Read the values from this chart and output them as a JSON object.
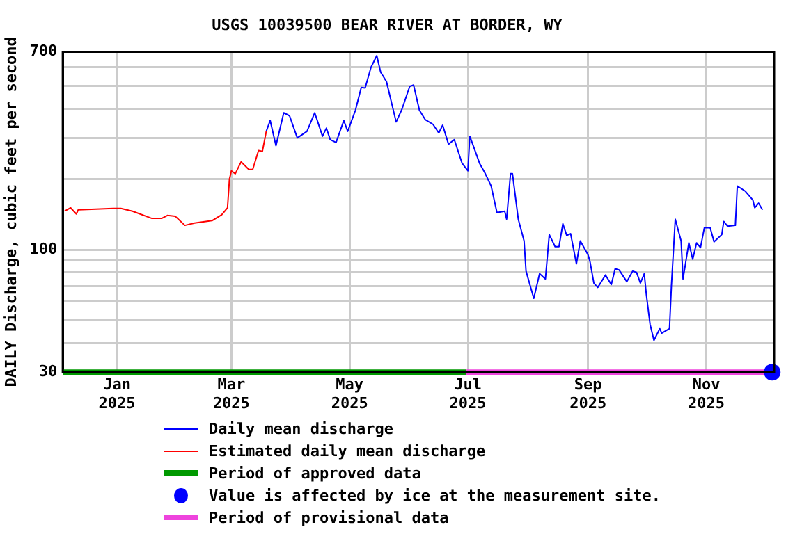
{
  "chart_data": {
    "type": "line",
    "title": "USGS 10039500 BEAR RIVER AT BORDER, WY",
    "ylabel": "DAILY Discharge, cubic feet per second",
    "log": "y",
    "grid": true,
    "legend": "bottom",
    "marker": "none",
    "xlim": [
      "2024-12-04",
      "2025-12-06"
    ],
    "xticks": [
      {
        "value": "2025-01-01",
        "label": "Jan 2025"
      },
      {
        "value": "2025-03-01",
        "label": "Mar 2025"
      },
      {
        "value": "2025-05-01",
        "label": "May 2025"
      },
      {
        "value": "2025-07-01",
        "label": "Jul 2025"
      },
      {
        "value": "2025-09-01",
        "label": "Sep 2025"
      },
      {
        "value": "2025-11-01",
        "label": "Nov 2025"
      }
    ],
    "ylim": [
      30,
      700
    ],
    "yticks": [
      30,
      {
        "value": 40,
        "label": null
      },
      {
        "value": 50,
        "label": null
      },
      {
        "value": 60,
        "label": null
      },
      {
        "value": 70,
        "label": null
      },
      {
        "value": 80,
        "label": null
      },
      {
        "value": 90,
        "label": null
      },
      100,
      {
        "value": 200,
        "label": null
      },
      {
        "value": 300,
        "label": null
      },
      {
        "value": 400,
        "label": null
      },
      {
        "value": 500,
        "label": null
      },
      {
        "value": 600,
        "label": null
      },
      700
    ],
    "series": [
      {
        "name": "Daily mean discharge",
        "color": "#0000ff",
        "x": [
          "2025-03-19",
          "2025-03-21",
          "2025-03-24",
          "2025-03-28",
          "2025-03-31",
          "2025-04-04",
          "2025-04-09",
          "2025-04-13",
          "2025-04-17",
          "2025-04-19",
          "2025-04-21",
          "2025-04-24",
          "2025-04-28",
          "2025-04-30",
          "2025-05-04",
          "2025-05-07",
          "2025-05-09",
          "2025-05-12",
          "2025-05-15",
          "2025-05-17",
          "2025-05-20",
          "2025-05-25",
          "2025-05-28",
          "2025-06-01",
          "2025-06-03",
          "2025-06-06",
          "2025-06-09",
          "2025-06-13",
          "2025-06-16",
          "2025-06-18",
          "2025-06-21",
          "2025-06-24",
          "2025-06-28",
          "2025-07-01",
          "2025-07-02",
          "2025-07-07",
          "2025-07-10",
          "2025-07-13",
          "2025-07-16",
          "2025-07-20",
          "2025-07-21",
          "2025-07-23",
          "2025-07-24",
          "2025-07-27",
          "2025-07-30",
          "2025-07-31",
          "2025-08-04",
          "2025-08-07",
          "2025-08-10",
          "2025-08-12",
          "2025-08-15",
          "2025-08-17",
          "2025-08-19",
          "2025-08-21",
          "2025-08-23",
          "2025-08-26",
          "2025-08-28",
          "2025-09-01",
          "2025-09-02",
          "2025-09-04",
          "2025-09-06",
          "2025-09-10",
          "2025-09-13",
          "2025-09-15",
          "2025-09-17",
          "2025-09-21",
          "2025-09-24",
          "2025-09-26",
          "2025-09-28",
          "2025-09-30",
          "2025-10-01",
          "2025-10-03",
          "2025-10-05",
          "2025-10-08",
          "2025-10-09",
          "2025-10-13",
          "2025-10-14",
          "2025-10-16",
          "2025-10-19",
          "2025-10-20",
          "2025-10-23",
          "2025-10-25",
          "2025-10-27",
          "2025-10-29",
          "2025-10-31",
          "2025-11-03",
          "2025-11-05",
          "2025-11-09",
          "2025-11-10",
          "2025-11-12",
          "2025-11-16",
          "2025-11-17",
          "2025-11-21",
          "2025-11-25",
          "2025-11-26",
          "2025-11-28",
          "2025-11-30"
        ],
        "values": [
          320,
          356,
          278,
          384,
          373,
          300,
          320,
          384,
          305,
          330,
          295,
          287,
          356,
          320,
          394,
          493,
          490,
          600,
          674,
          573,
          522,
          351,
          398,
          498,
          505,
          394,
          359,
          343,
          315,
          340,
          282,
          295,
          234,
          217,
          305,
          234,
          211,
          187,
          144,
          146,
          135,
          211,
          211,
          135,
          109,
          81,
          62,
          79,
          75,
          116,
          103,
          103,
          129,
          115,
          117,
          87,
          109,
          95,
          89,
          72,
          69,
          78,
          71,
          83,
          82,
          73,
          81,
          80,
          72,
          79,
          65,
          48,
          41,
          46,
          44,
          46,
          70,
          135,
          109,
          75,
          107,
          91,
          107,
          102,
          124,
          124,
          108,
          116,
          132,
          126,
          127,
          187,
          178,
          163,
          151,
          158,
          148
        ]
      },
      {
        "name": "Estimated daily mean discharge",
        "color": "#ff0000",
        "x": [
          "2024-12-05",
          "2024-12-08",
          "2024-12-11",
          "2024-12-12",
          "2024-12-30",
          "2025-01-03",
          "2025-01-09",
          "2025-01-19",
          "2025-01-24",
          "2025-01-27",
          "2025-01-31",
          "2025-02-05",
          "2025-02-10",
          "2025-02-19",
          "2025-02-24",
          "2025-02-27",
          "2025-02-28",
          "2025-03-01",
          "2025-03-03",
          "2025-03-06",
          "2025-03-10",
          "2025-03-12",
          "2025-03-15",
          "2025-03-17",
          "2025-03-19"
        ],
        "values": [
          146,
          151,
          142,
          148,
          150,
          150,
          146,
          136,
          136,
          140,
          139,
          127,
          130,
          133,
          141,
          151,
          200,
          217,
          211,
          237,
          220,
          220,
          265,
          263,
          320
        ]
      },
      {
        "name": "Period of approved data",
        "color": "#009900",
        "x": [
          "2024-12-04",
          "2025-06-30"
        ],
        "values": [
          30,
          30
        ]
      },
      {
        "name": "Value is affected by ice at the measurement site.",
        "color": "#0000ff",
        "type": "scatter",
        "marker": "circle",
        "x": [
          "2025-12-05"
        ],
        "values": [
          30
        ]
      },
      {
        "name": "Period of provisional data",
        "color": "#ee44dd",
        "x": [
          "2025-06-30",
          "2025-12-06"
        ],
        "values": [
          30,
          30
        ]
      }
    ]
  }
}
